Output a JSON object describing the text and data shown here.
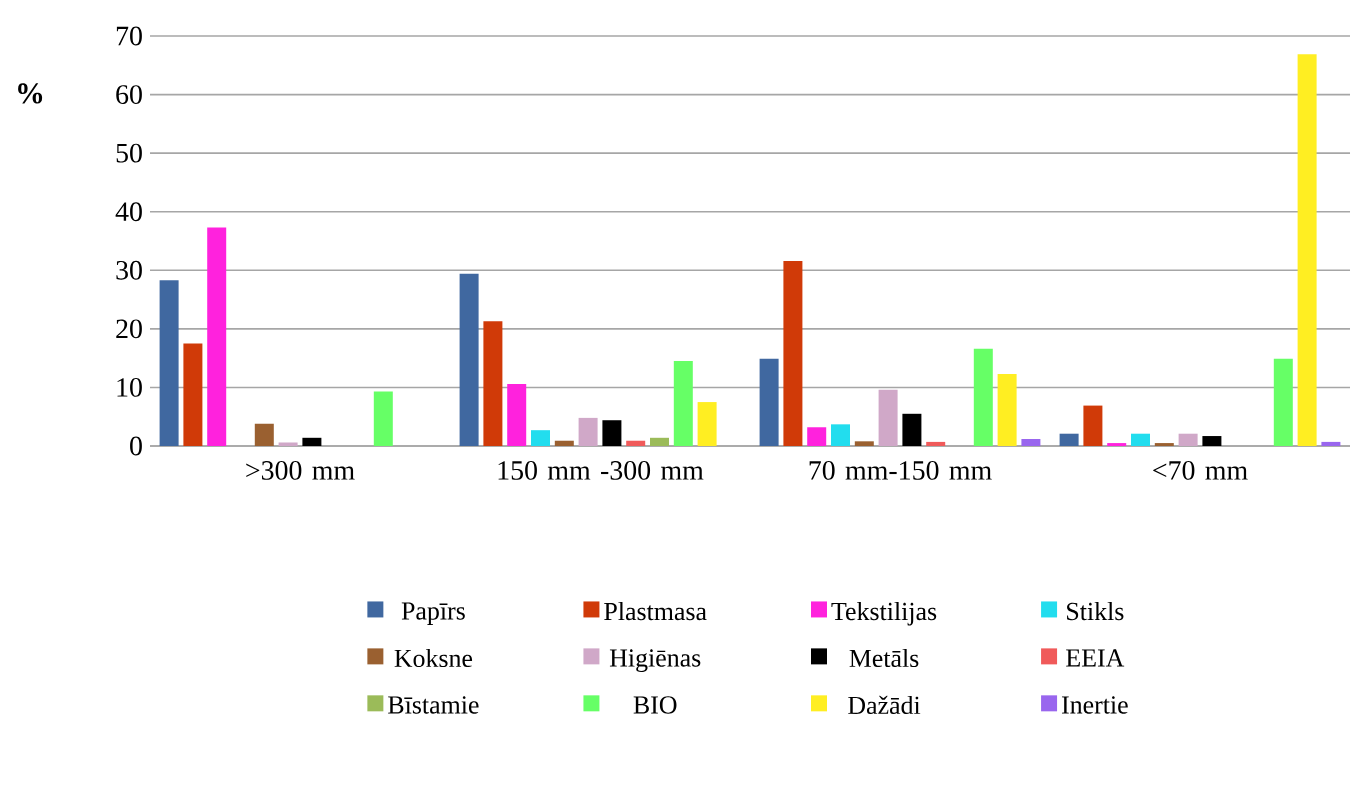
{
  "chart_data": {
    "type": "bar",
    "ylabel": "%",
    "categories": [
      ">300 mm",
      "150 mm -300 mm",
      "70 mm-150 mm",
      "<70 mm"
    ],
    "ylim": [
      0,
      70
    ],
    "yticks": [
      0,
      10,
      20,
      30,
      40,
      50,
      60,
      70
    ],
    "grid": "y",
    "legend": "bottom",
    "series": [
      {
        "name": "Papīrs",
        "color": "#4068a0",
        "values": [
          28.3,
          29.4,
          14.9,
          2.1
        ]
      },
      {
        "name": "Plastmasa",
        "color": "#d03a08",
        "values": [
          17.5,
          21.3,
          31.6,
          6.9
        ]
      },
      {
        "name": "Tekstilijas",
        "color": "#ff22dd",
        "values": [
          37.3,
          10.6,
          3.2,
          0.5
        ]
      },
      {
        "name": "Stikls",
        "color": "#22ddee",
        "values": [
          0,
          2.7,
          3.7,
          2.1
        ]
      },
      {
        "name": "Koksne",
        "color": "#9a6030",
        "values": [
          3.8,
          0.9,
          0.8,
          0.5
        ]
      },
      {
        "name": "Higiēnas",
        "color": "#d0a8c8",
        "values": [
          0.6,
          4.8,
          9.6,
          2.1
        ]
      },
      {
        "name": "Metāls",
        "color": "#000000",
        "values": [
          1.4,
          4.4,
          5.5,
          1.7
        ]
      },
      {
        "name": "EEIA",
        "color": "#f05a5a",
        "values": [
          0,
          0.9,
          0.7,
          0
        ]
      },
      {
        "name": "Bīstamie",
        "color": "#9bbb59",
        "values": [
          0,
          1.4,
          0,
          0
        ]
      },
      {
        "name": "BIO",
        "color": "#66ff66",
        "values": [
          9.3,
          14.5,
          16.6,
          14.9
        ]
      },
      {
        "name": "Dažādi",
        "color": "#ffee22",
        "values": [
          0,
          7.5,
          12.3,
          66.9
        ]
      },
      {
        "name": "Inertie",
        "color": "#9966ee",
        "values": [
          0,
          0,
          1.2,
          0.7
        ]
      }
    ]
  }
}
